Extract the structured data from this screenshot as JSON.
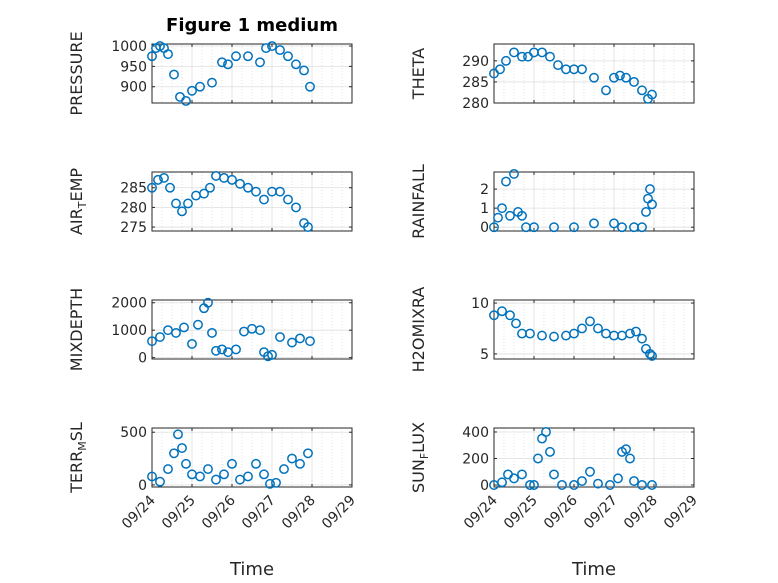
{
  "figure": {
    "title": "Figure 1 medium",
    "xlabel_left": "Time",
    "xlabel_right": "Time",
    "marker_color": "#0072bd"
  },
  "chart_data": [
    {
      "type": "scatter",
      "ylabel": "PRESSURE",
      "ylim": [
        860,
        1005
      ],
      "yticks": [
        900,
        950,
        1000
      ],
      "x": [
        0,
        0.1,
        0.2,
        0.3,
        0.4,
        0.55,
        0.7,
        0.85,
        1,
        1.2,
        1.5,
        1.75,
        1.9,
        2.1,
        2.4,
        2.7,
        2.85,
        3,
        3.2,
        3.4,
        3.6,
        3.8,
        3.95
      ],
      "y": [
        975,
        995,
        1000,
        995,
        980,
        930,
        875,
        865,
        890,
        900,
        910,
        960,
        955,
        975,
        975,
        960,
        995,
        1000,
        990,
        975,
        955,
        940,
        900
      ]
    },
    {
      "type": "scatter",
      "ylabel": "THETA",
      "ylim": [
        280,
        294
      ],
      "yticks": [
        280,
        285,
        290
      ],
      "x": [
        0,
        0.15,
        0.3,
        0.5,
        0.7,
        0.85,
        1,
        1.2,
        1.4,
        1.6,
        1.8,
        2,
        2.2,
        2.5,
        2.8,
        3,
        3.15,
        3.3,
        3.5,
        3.7,
        3.85,
        3.95
      ],
      "y": [
        287,
        288,
        290,
        292,
        291,
        291,
        292,
        292,
        291,
        289,
        288,
        288,
        288,
        286,
        283,
        286,
        286.5,
        286,
        285,
        283,
        281,
        282
      ]
    },
    {
      "type": "scatter",
      "ylabel": "AIR_TEMP",
      "ylim": [
        274,
        289
      ],
      "yticks": [
        275,
        280,
        285
      ],
      "x": [
        0,
        0.15,
        0.3,
        0.45,
        0.6,
        0.75,
        0.9,
        1.1,
        1.3,
        1.45,
        1.6,
        1.8,
        2,
        2.2,
        2.4,
        2.6,
        2.8,
        3,
        3.2,
        3.4,
        3.6,
        3.8,
        3.9
      ],
      "y": [
        285,
        287,
        287.5,
        285,
        281,
        279,
        281,
        283,
        283.5,
        285,
        288,
        287.5,
        287,
        286,
        285,
        284,
        282,
        284,
        284,
        282,
        280,
        276,
        275
      ]
    },
    {
      "type": "scatter",
      "ylabel": "RAINFALL",
      "ylim": [
        -0.2,
        2.9
      ],
      "yticks": [
        0,
        1,
        2
      ],
      "x": [
        0,
        0.1,
        0.2,
        0.3,
        0.4,
        0.5,
        0.6,
        0.7,
        0.8,
        1,
        1.5,
        2,
        2.5,
        3,
        3.2,
        3.5,
        3.7,
        3.8,
        3.85,
        3.9,
        3.95
      ],
      "y": [
        0,
        0.5,
        1,
        2.4,
        0.6,
        2.8,
        0.8,
        0.6,
        0,
        0,
        0,
        0,
        0.2,
        0.2,
        0,
        0,
        0,
        0.8,
        1.5,
        2,
        1.2
      ]
    },
    {
      "type": "scatter",
      "ylabel": "MIXDEPTH",
      "ylim": [
        -50,
        2100
      ],
      "yticks": [
        0,
        1000,
        2000
      ],
      "x": [
        0,
        0.2,
        0.4,
        0.6,
        0.8,
        1,
        1.15,
        1.3,
        1.4,
        1.5,
        1.6,
        1.75,
        1.9,
        2.1,
        2.3,
        2.5,
        2.7,
        2.8,
        2.9,
        3,
        3.2,
        3.5,
        3.7,
        3.95
      ],
      "y": [
        600,
        750,
        1000,
        900,
        1100,
        500,
        1200,
        1800,
        2000,
        900,
        250,
        300,
        200,
        300,
        950,
        1050,
        1000,
        200,
        50,
        100,
        750,
        550,
        700,
        600
      ]
    },
    {
      "type": "scatter",
      "ylabel": "H2OMIXRA",
      "ylim": [
        4.5,
        10.3
      ],
      "yticks": [
        5,
        10
      ],
      "x": [
        0,
        0.2,
        0.4,
        0.55,
        0.7,
        0.9,
        1.2,
        1.5,
        1.8,
        2,
        2.2,
        2.4,
        2.6,
        2.8,
        3,
        3.2,
        3.4,
        3.55,
        3.7,
        3.8,
        3.9,
        3.95
      ],
      "y": [
        8.8,
        9.2,
        8.8,
        8,
        7,
        7,
        6.8,
        6.7,
        6.8,
        7,
        7.5,
        8.2,
        7.5,
        7,
        6.8,
        6.8,
        7,
        7.2,
        6.5,
        5.5,
        5,
        4.8
      ]
    },
    {
      "type": "scatter",
      "ylabel": "TERR_MSL",
      "ylim": [
        -20,
        540
      ],
      "yticks": [
        0,
        500
      ],
      "x": [
        0,
        0.2,
        0.4,
        0.55,
        0.65,
        0.75,
        0.85,
        1,
        1.2,
        1.4,
        1.6,
        1.8,
        2,
        2.2,
        2.4,
        2.6,
        2.8,
        2.95,
        3.1,
        3.3,
        3.5,
        3.7,
        3.9
      ],
      "y": [
        80,
        30,
        150,
        300,
        480,
        350,
        200,
        100,
        80,
        150,
        50,
        100,
        200,
        50,
        80,
        200,
        100,
        10,
        20,
        150,
        250,
        200,
        300
      ]
    },
    {
      "type": "scatter",
      "ylabel": "SUN_FLUX",
      "ylim": [
        -15,
        430
      ],
      "yticks": [
        0,
        200,
        400
      ],
      "x": [
        0,
        0.2,
        0.35,
        0.5,
        0.7,
        0.9,
        1,
        1.1,
        1.2,
        1.3,
        1.4,
        1.5,
        1.7,
        2,
        2.2,
        2.4,
        2.6,
        2.9,
        3.1,
        3.2,
        3.3,
        3.4,
        3.5,
        3.7,
        3.95
      ],
      "y": [
        0,
        20,
        80,
        50,
        80,
        0,
        0,
        200,
        350,
        400,
        250,
        80,
        0,
        0,
        30,
        100,
        10,
        0,
        50,
        250,
        270,
        200,
        30,
        0,
        0
      ]
    }
  ],
  "xaxis": {
    "xlim": [
      0,
      5
    ],
    "tick_labels": [
      "09/24",
      "09/25",
      "09/26",
      "09/27",
      "09/28",
      "09/29"
    ]
  }
}
